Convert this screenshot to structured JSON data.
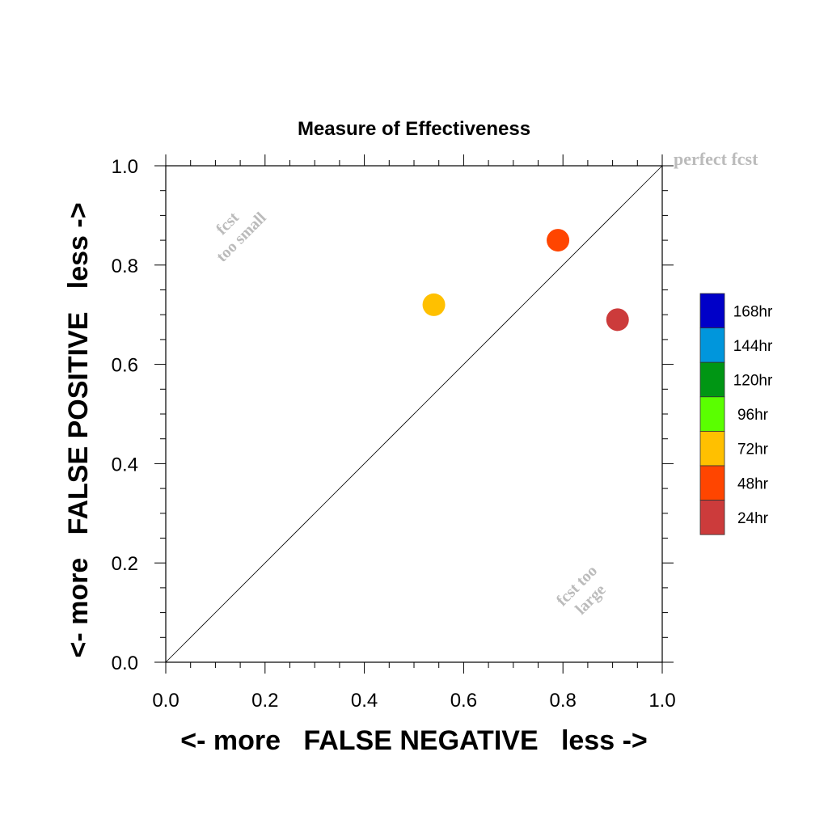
{
  "chart_data": {
    "type": "scatter",
    "title": "Measure of Effectiveness",
    "xlabel": "<- more   FALSE NEGATIVE   less ->",
    "ylabel": "<- more   FALSE POSITIVE   less ->",
    "xlim": [
      0.0,
      1.0
    ],
    "ylim": [
      0.0,
      1.0
    ],
    "xticks": [
      "0.0",
      "0.2",
      "0.4",
      "0.6",
      "0.8",
      "1.0"
    ],
    "yticks": [
      "0.0",
      "0.2",
      "0.4",
      "0.6",
      "0.8",
      "1.0"
    ],
    "grid": false,
    "diagonal_reference_line": true,
    "annotations": {
      "perfect": "perfect fcst",
      "too_small_line1": "fcst",
      "too_small_line2": "too small",
      "too_large_line1": "fcst too",
      "too_large_line2": "large"
    },
    "points": [
      {
        "label": "72hr",
        "x": 0.54,
        "y": 0.72,
        "color": "#FFC000"
      },
      {
        "label": "48hr",
        "x": 0.79,
        "y": 0.85,
        "color": "#FF4500"
      },
      {
        "label": "24hr",
        "x": 0.91,
        "y": 0.69,
        "color": "#CC3B3B"
      }
    ],
    "legend": {
      "placement": "right",
      "entries": [
        {
          "label": "168hr",
          "color": "#0000C8"
        },
        {
          "label": "144hr",
          "color": "#0096DC"
        },
        {
          "label": "120hr",
          "color": "#009614"
        },
        {
          "label": "96hr",
          "color": "#5AFF00"
        },
        {
          "label": "72hr",
          "color": "#FFC000"
        },
        {
          "label": "48hr",
          "color": "#FF4500"
        },
        {
          "label": "24hr",
          "color": "#CC3B3B"
        }
      ]
    }
  }
}
